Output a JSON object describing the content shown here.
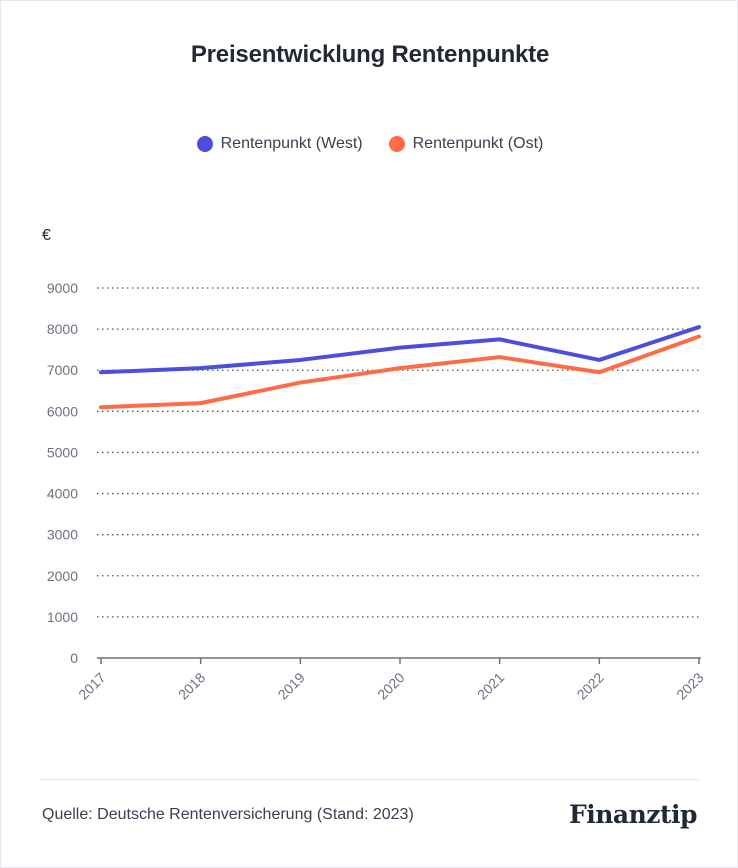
{
  "chart_data": {
    "type": "line",
    "title": "Preisentwicklung Rentenpunkte",
    "ylabel": "€",
    "xlabel": "",
    "categories": [
      "2017",
      "2018",
      "2019",
      "2020",
      "2021",
      "2022",
      "2023"
    ],
    "ylim": [
      0,
      9000
    ],
    "yticks": [
      "0",
      "1000",
      "2000",
      "3000",
      "4000",
      "5000",
      "6000",
      "7000",
      "8000",
      "9000"
    ],
    "grid": true,
    "legend_position": "top-center",
    "series": [
      {
        "name": "Rentenpunkt (West)",
        "color": "#4b4fdb",
        "values": [
          6950,
          7050,
          7250,
          7550,
          7750,
          7250,
          8050
        ]
      },
      {
        "name": "Rentenpunkt (Ost)",
        "color": "#ff6b45",
        "values": [
          6100,
          6200,
          6700,
          7050,
          7320,
          6950,
          7820
        ]
      }
    ]
  },
  "footer": {
    "source": "Quelle: Deutsche Rentenversicherung (Stand: 2023)",
    "brand": "Finanztip"
  }
}
